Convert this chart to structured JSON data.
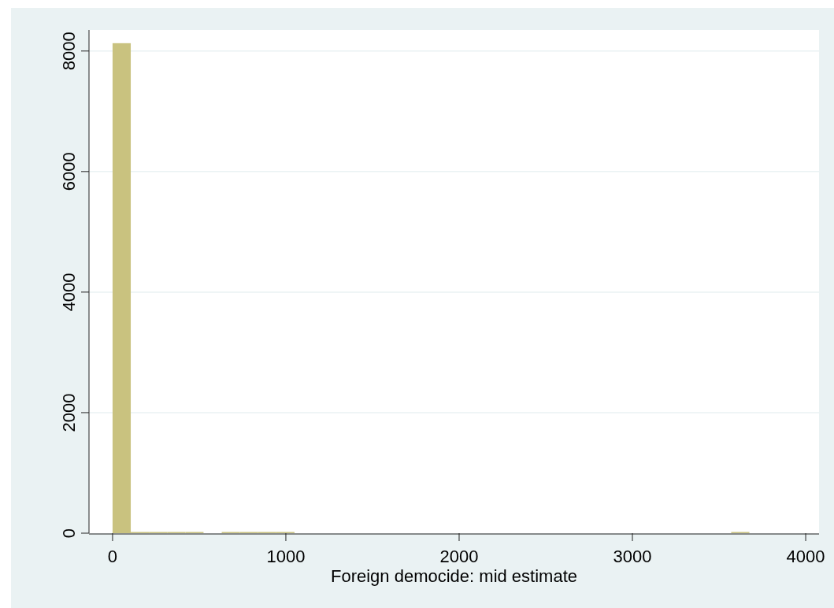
{
  "chart_data": {
    "type": "histogram",
    "xlabel": "Foreign democide: mid estimate",
    "bins": [
      0,
      105,
      210,
      315,
      420,
      525,
      630,
      735,
      840,
      945,
      1050,
      1155,
      1260,
      1365,
      1470,
      1575,
      1680,
      1785,
      1890,
      1995,
      2100,
      2205,
      2310,
      2415,
      2520,
      2625,
      2730,
      2835,
      2940,
      3045,
      3150,
      3255,
      3360,
      3465,
      3570,
      3675
    ],
    "values": [
      8130,
      20,
      20,
      20,
      20,
      0,
      20,
      20,
      20,
      20,
      0,
      0,
      0,
      0,
      0,
      0,
      0,
      0,
      0,
      0,
      0,
      0,
      0,
      0,
      0,
      0,
      0,
      0,
      0,
      0,
      0,
      0,
      0,
      0,
      20
    ],
    "color": "#c9c27f",
    "xlim": [
      -136,
      4077
    ],
    "ylim": [
      0,
      8350
    ],
    "xticks": [
      0,
      1000,
      2000,
      3000,
      4000
    ],
    "yticks": [
      0,
      2000,
      4000,
      6000,
      8000
    ],
    "grid": "y"
  }
}
